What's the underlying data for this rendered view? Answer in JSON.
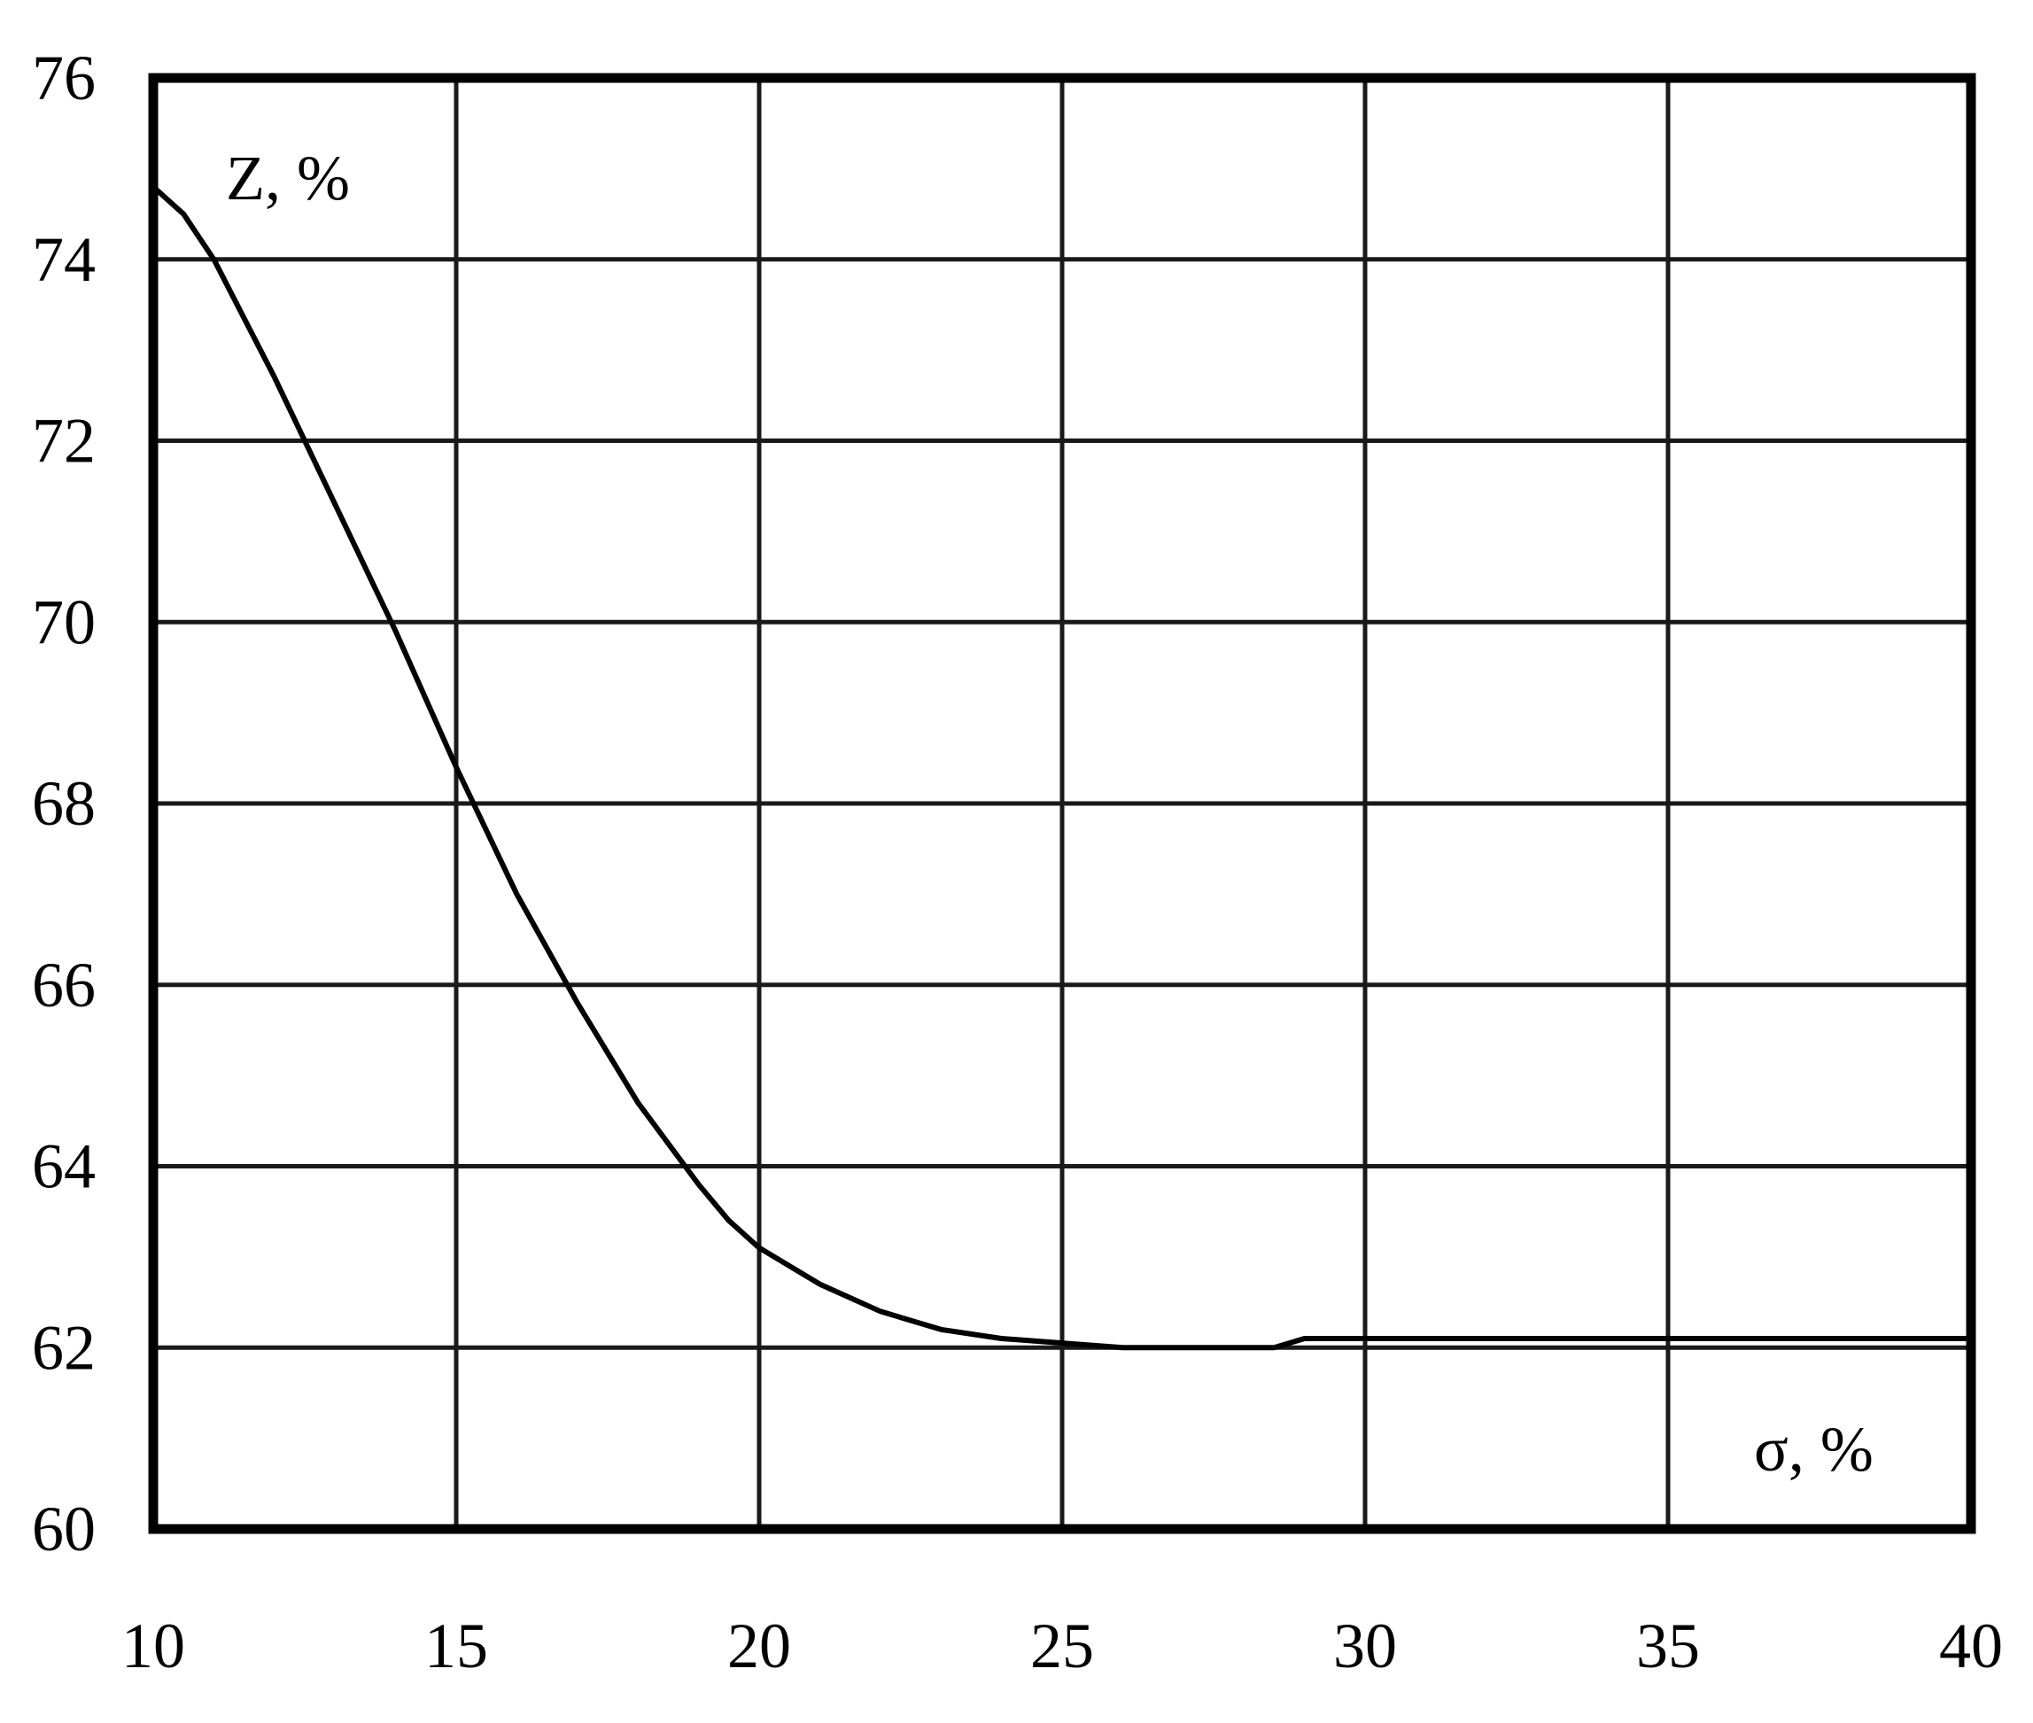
{
  "chart_data": {
    "type": "line",
    "title": "",
    "xlabel": "σ, %",
    "ylabel": "Z, %",
    "xlim": [
      10,
      40
    ],
    "ylim": [
      60,
      76
    ],
    "x_ticks": [
      "10",
      "15",
      "20",
      "25",
      "30",
      "35",
      "40"
    ],
    "y_ticks": [
      "60",
      "62",
      "64",
      "66",
      "68",
      "70",
      "72",
      "74",
      "76"
    ],
    "grid": true,
    "series": [
      {
        "x": [
          10,
          10.5,
          11,
          12,
          13,
          14,
          15,
          16,
          17,
          18,
          19,
          19.5,
          20,
          20.5,
          21,
          22,
          23,
          24,
          25,
          26,
          27,
          28,
          28.5,
          29,
          30,
          35,
          40
        ],
        "y": [
          74.8,
          74.5,
          74.0,
          72.7,
          71.3,
          69.9,
          68.4,
          67.0,
          65.8,
          64.7,
          63.8,
          63.4,
          63.1,
          62.9,
          62.7,
          62.4,
          62.2,
          62.1,
          62.05,
          62.0,
          62.0,
          62.0,
          62.0,
          62.1,
          62.1,
          62.1,
          62.1
        ]
      }
    ]
  }
}
